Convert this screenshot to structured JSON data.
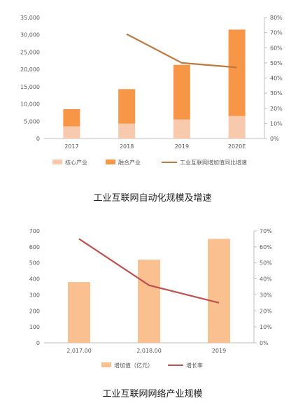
{
  "chart_data": [
    {
      "type": "bar",
      "stacked": true,
      "caption": "工业互联网自动化规模及增速",
      "categories": [
        "2017",
        "2018",
        "2019",
        "2020E"
      ],
      "series": [
        {
          "name": "核心产业",
          "kind": "bar",
          "color": "#f8c9ac",
          "values": [
            3500,
            4300,
            5500,
            6500
          ]
        },
        {
          "name": "融合产业",
          "kind": "bar",
          "color": "#f79646",
          "values": [
            5000,
            10000,
            15800,
            25000
          ]
        },
        {
          "name": "工业互联网增加值同比增速",
          "kind": "line",
          "axis": "right",
          "color": "#c0793f",
          "values": [
            null,
            0.69,
            0.5,
            0.47
          ]
        }
      ],
      "yleft": {
        "min": 0,
        "max": 35000,
        "ticks": [
          "0",
          "5,000",
          "10,000",
          "15,000",
          "20,000",
          "25,000",
          "30,000",
          "35,000"
        ]
      },
      "yright": {
        "min": 0,
        "max": 0.8,
        "ticks": [
          "0%",
          "10%",
          "20%",
          "30%",
          "40%",
          "50%",
          "60%",
          "70%",
          "80%"
        ]
      },
      "grid": false,
      "legend": "bottom"
    },
    {
      "type": "bar",
      "caption": "工业互联网网络产业规模",
      "categories": [
        "2,017.00",
        "2,018.00",
        "2019"
      ],
      "series": [
        {
          "name": "增加值（亿元）",
          "kind": "bar",
          "color": "#fac090",
          "values": [
            380,
            520,
            650
          ]
        },
        {
          "name": "增长率",
          "kind": "line",
          "axis": "right",
          "color": "#c0504d",
          "values": [
            0.65,
            0.36,
            0.25
          ]
        }
      ],
      "yleft": {
        "min": 0,
        "max": 700,
        "ticks": [
          "0",
          "100",
          "200",
          "300",
          "400",
          "500",
          "600",
          "700"
        ]
      },
      "yright": {
        "min": 0,
        "max": 0.7,
        "ticks": [
          "0%",
          "10%",
          "20%",
          "30%",
          "40%",
          "50%",
          "60%",
          "70%"
        ]
      },
      "grid": false,
      "legend": "bottom"
    }
  ]
}
